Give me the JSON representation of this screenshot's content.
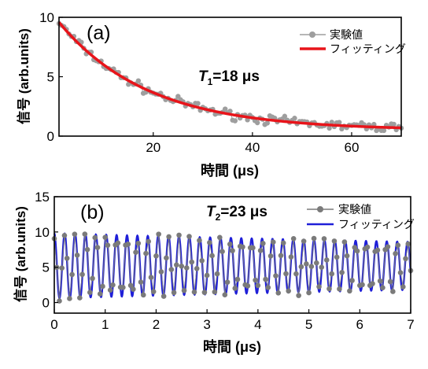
{
  "chart_data": [
    {
      "type": "line",
      "panel_label": "(a)",
      "annotation": "T1=18 μs",
      "annotation_parts": {
        "symbol": "T",
        "subscript": "1",
        "rest": "=18 μs"
      },
      "xlabel": "時間 (μs)",
      "ylabel": "信号 (arb.units)",
      "xlim": [
        1,
        70
      ],
      "ylim": [
        0,
        10
      ],
      "xticks": [
        20,
        40,
        60
      ],
      "yticks": [
        0,
        5,
        10
      ],
      "legend_position": "top-right",
      "series": [
        {
          "name": "実験値",
          "style": "markers+thin-line",
          "color": "#9e9e9e",
          "model": {
            "form": "A*exp(-t/T)+C",
            "A": 9.6,
            "T": 18,
            "C": 0.5,
            "noise": 0.55
          }
        },
        {
          "name": "フィッティング",
          "style": "line",
          "color": "#e8141a",
          "model": {
            "form": "A*exp(-t/T)+C",
            "A": 9.6,
            "T": 18,
            "C": 0.5
          }
        }
      ],
      "fit": {
        "A": 9.6,
        "T": 18,
        "C": 0.5
      }
    },
    {
      "type": "line",
      "panel_label": "(b)",
      "annotation": "T2=23 μs",
      "annotation_parts": {
        "symbol": "T",
        "subscript": "2",
        "rest": "=23 μs"
      },
      "xlabel": "時間 (μs)",
      "ylabel": "信号 (arb.units)",
      "xlim": [
        0,
        7
      ],
      "ylim": [
        -1.5,
        15
      ],
      "xticks": [
        0,
        1,
        2,
        3,
        4,
        5,
        6,
        7
      ],
      "yticks": [
        0,
        5,
        10,
        15
      ],
      "legend_position": "top-right",
      "series": [
        {
          "name": "実験値",
          "style": "markers+thin-line",
          "color": "#7a7a7a",
          "model": {
            "form": "C+A*exp(-t/T)*cos(2*pi*f*t)",
            "C": 5.2,
            "A": 4.6,
            "T": 23,
            "f": 4.9,
            "noise": 0.9
          }
        },
        {
          "name": "フィッティング",
          "style": "line",
          "color": "#1f1fd8",
          "model": {
            "form": "C+A*exp(-t/T)*cos(2*pi*f*t)",
            "C": 5.2,
            "A": 4.6,
            "T": 23,
            "f": 4.9
          }
        }
      ],
      "fit": {
        "C": 5.2,
        "A": 4.6,
        "T": 23,
        "f": 4.9
      }
    }
  ]
}
